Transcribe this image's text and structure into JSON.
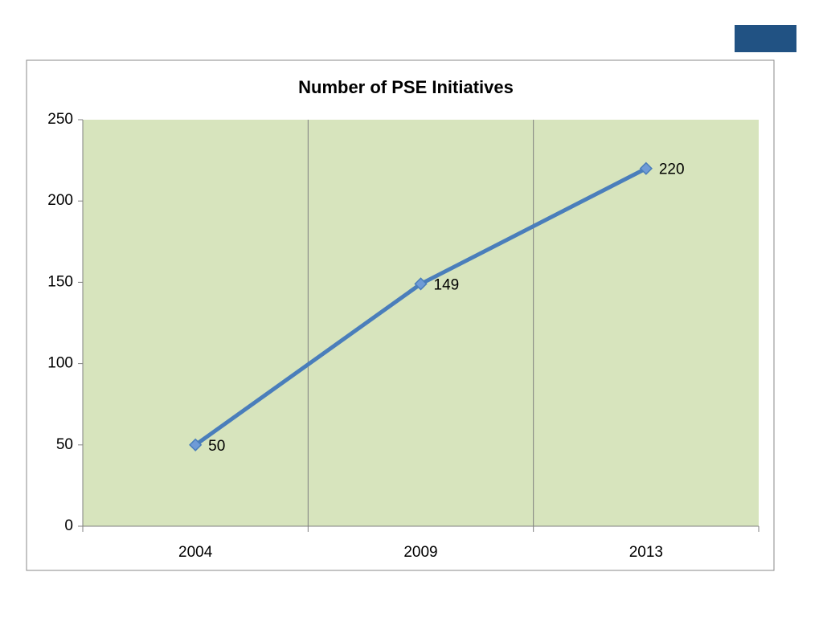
{
  "chart_data": {
    "type": "line",
    "title": "Number of PSE Initiatives",
    "categories": [
      "2004",
      "2009",
      "2013"
    ],
    "values": [
      50,
      149,
      220
    ],
    "color": "#4a7ebb",
    "ylim": [
      0,
      250
    ],
    "yticks": [
      0,
      50,
      100,
      150,
      200,
      250
    ],
    "plot_background": "#d7e4bd"
  }
}
